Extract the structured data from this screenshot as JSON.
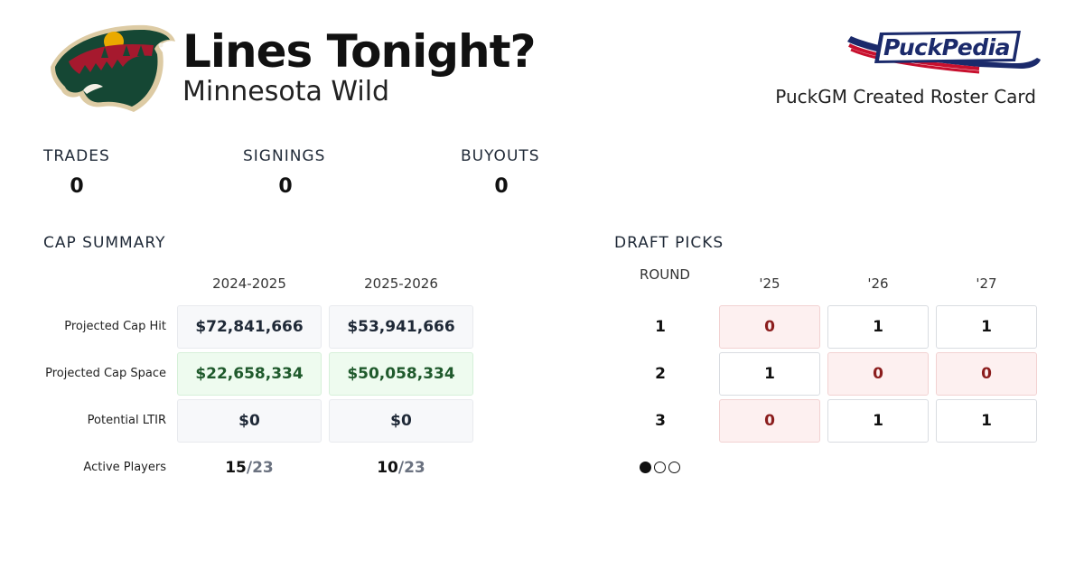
{
  "header": {
    "title": "Lines Tonight?",
    "team": "Minnesota Wild",
    "brand_text": "PuckPedia",
    "brand_sub": "PuckGM Created Roster Card"
  },
  "stats": [
    {
      "label": "TRADES",
      "value": "0"
    },
    {
      "label": "SIGNINGS",
      "value": "0"
    },
    {
      "label": "BUYOUTS",
      "value": "0"
    }
  ],
  "cap_summary": {
    "title": "CAP SUMMARY",
    "seasons": [
      "2024-2025",
      "2025-2026"
    ],
    "rows": [
      {
        "label": "Projected Cap Hit",
        "values": [
          "$72,841,666",
          "$53,941,666"
        ],
        "style": "neutral"
      },
      {
        "label": "Projected Cap Space",
        "values": [
          "$22,658,334",
          "$50,058,334"
        ],
        "style": "positive"
      },
      {
        "label": "Potential LTIR",
        "values": [
          "$0",
          "$0"
        ],
        "style": "neutral"
      }
    ],
    "active_players": {
      "label": "Active Players",
      "values": [
        {
          "count": "15",
          "max": "/23"
        },
        {
          "count": "10",
          "max": "/23"
        }
      ]
    }
  },
  "draft_picks": {
    "title": "DRAFT PICKS",
    "round_header": "ROUND",
    "years": [
      "'25",
      "'26",
      "'27"
    ],
    "rounds": [
      {
        "round": "1",
        "picks": [
          "0",
          "1",
          "1"
        ]
      },
      {
        "round": "2",
        "picks": [
          "1",
          "0",
          "0"
        ]
      },
      {
        "round": "3",
        "picks": [
          "0",
          "1",
          "1"
        ]
      }
    ],
    "pager": {
      "pages": 3,
      "active": 0
    }
  },
  "colors": {
    "wild_green": "#154734",
    "wild_red": "#A6192E",
    "wild_gold": "#EAAA00",
    "wild_cream": "#DDCBA4",
    "puckpedia_navy": "#1b2a6b",
    "puckpedia_red": "#c8102e",
    "positive_text": "#1f5a2c",
    "negative_text": "#8b1d1d"
  }
}
